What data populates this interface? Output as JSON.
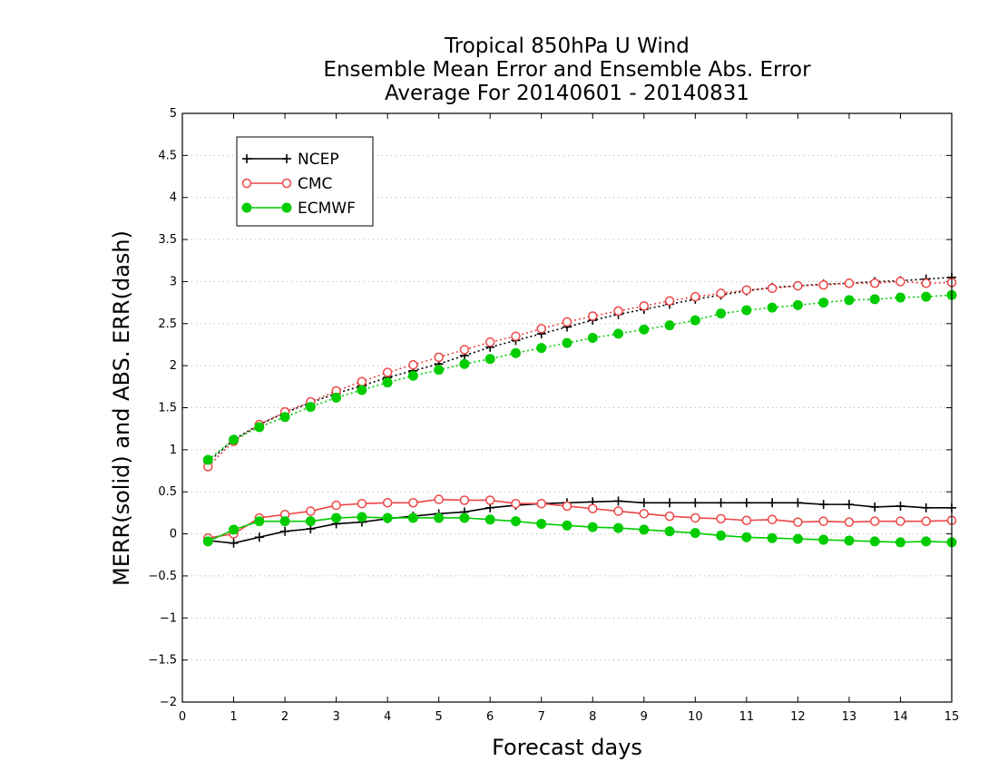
{
  "chart_data": {
    "type": "line",
    "title_lines": [
      "Tropical 850hPa U Wind",
      "Ensemble Mean Error and Ensemble Abs. Error",
      "Average For 20140601 - 20140831"
    ],
    "xlabel": "Forecast days",
    "ylabel": "MERR(solid) and ABS. ERR(dash)",
    "xlim": [
      0,
      15
    ],
    "ylim": [
      -2,
      5
    ],
    "xticks": [
      "0",
      "1",
      "2",
      "3",
      "4",
      "5",
      "6",
      "7",
      "8",
      "9",
      "10",
      "11",
      "12",
      "13",
      "14",
      "15"
    ],
    "yticks": [
      "-2",
      "-1.5",
      "-1",
      "-0.5",
      "0",
      "0.5",
      "1",
      "1.5",
      "2",
      "2.5",
      "3",
      "3.5",
      "4",
      "4.5",
      "5"
    ],
    "grid": "horizontal dotted",
    "legend_position": "top-left",
    "x": [
      0.5,
      1,
      1.5,
      2,
      2.5,
      3,
      3.5,
      4,
      4.5,
      5,
      5.5,
      6,
      6.5,
      7,
      7.5,
      8,
      8.5,
      9,
      9.5,
      10,
      10.5,
      11,
      11.5,
      12,
      12.5,
      13,
      13.5,
      14,
      14.5,
      15
    ],
    "series": [
      {
        "name": "NCEP",
        "color": "#000000",
        "marker": "plus",
        "merr": [
          -0.08,
          -0.11,
          -0.04,
          0.03,
          0.06,
          0.12,
          0.14,
          0.18,
          0.21,
          0.24,
          0.26,
          0.31,
          0.34,
          0.36,
          0.37,
          0.38,
          0.39,
          0.37,
          0.37,
          0.37,
          0.37,
          0.37,
          0.37,
          0.37,
          0.35,
          0.35,
          0.32,
          0.33,
          0.31,
          0.31
        ],
        "abs_err": [
          0.85,
          1.12,
          1.3,
          1.44,
          1.56,
          1.67,
          1.76,
          1.86,
          1.94,
          2.02,
          2.12,
          2.22,
          2.3,
          2.38,
          2.46,
          2.54,
          2.61,
          2.67,
          2.73,
          2.79,
          2.84,
          2.89,
          2.93,
          2.95,
          2.97,
          2.98,
          3.0,
          3.01,
          3.03,
          3.05
        ]
      },
      {
        "name": "CMC",
        "color": "#ee4444",
        "marker": "open-circle",
        "merr": [
          -0.05,
          0.0,
          0.19,
          0.23,
          0.27,
          0.34,
          0.36,
          0.37,
          0.37,
          0.41,
          0.4,
          0.4,
          0.36,
          0.36,
          0.33,
          0.3,
          0.27,
          0.24,
          0.21,
          0.19,
          0.18,
          0.16,
          0.17,
          0.14,
          0.15,
          0.14,
          0.15,
          0.15,
          0.15,
          0.16
        ],
        "abs_err": [
          0.8,
          1.1,
          1.3,
          1.45,
          1.57,
          1.7,
          1.81,
          1.92,
          2.01,
          2.1,
          2.19,
          2.28,
          2.35,
          2.44,
          2.52,
          2.59,
          2.65,
          2.71,
          2.77,
          2.82,
          2.86,
          2.9,
          2.92,
          2.95,
          2.96,
          2.98,
          2.98,
          3.0,
          2.98,
          2.99
        ]
      },
      {
        "name": "ECMWF",
        "color": "#00cc00",
        "marker": "filled-circle",
        "merr": [
          -0.09,
          0.05,
          0.15,
          0.15,
          0.15,
          0.19,
          0.2,
          0.19,
          0.19,
          0.19,
          0.19,
          0.17,
          0.15,
          0.12,
          0.1,
          0.08,
          0.07,
          0.05,
          0.03,
          0.01,
          -0.02,
          -0.04,
          -0.05,
          -0.06,
          -0.07,
          -0.08,
          -0.09,
          -0.1,
          -0.09,
          -0.1
        ],
        "abs_err": [
          0.88,
          1.12,
          1.27,
          1.39,
          1.51,
          1.62,
          1.71,
          1.8,
          1.88,
          1.95,
          2.02,
          2.08,
          2.15,
          2.21,
          2.27,
          2.33,
          2.38,
          2.43,
          2.48,
          2.54,
          2.62,
          2.66,
          2.69,
          2.72,
          2.75,
          2.78,
          2.79,
          2.81,
          2.82,
          2.84
        ]
      }
    ]
  }
}
